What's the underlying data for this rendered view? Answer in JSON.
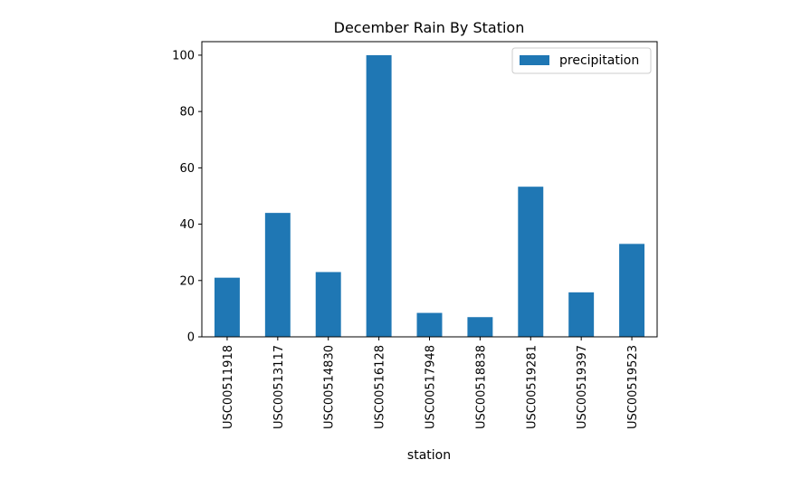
{
  "chart_data": {
    "type": "bar",
    "title": "December Rain By Station",
    "xlabel": "station",
    "ylabel": "",
    "categories": [
      "USC00511918",
      "USC00513117",
      "USC00514830",
      "USC00516128",
      "USC00517948",
      "USC00518838",
      "USC00519281",
      "USC00519397",
      "USC00519523"
    ],
    "series": [
      {
        "name": "precipitation",
        "values": [
          21,
          44,
          23,
          100,
          8.5,
          7,
          53.3,
          15.8,
          33
        ]
      }
    ],
    "ylim": [
      0,
      104.8
    ],
    "yticks": [
      0,
      20,
      40,
      60,
      80,
      100
    ],
    "legend": "top-right",
    "grid": false,
    "colors": {
      "bar": "#1f77b4",
      "axis": "#000000",
      "legend_border": "#cccccc"
    }
  }
}
